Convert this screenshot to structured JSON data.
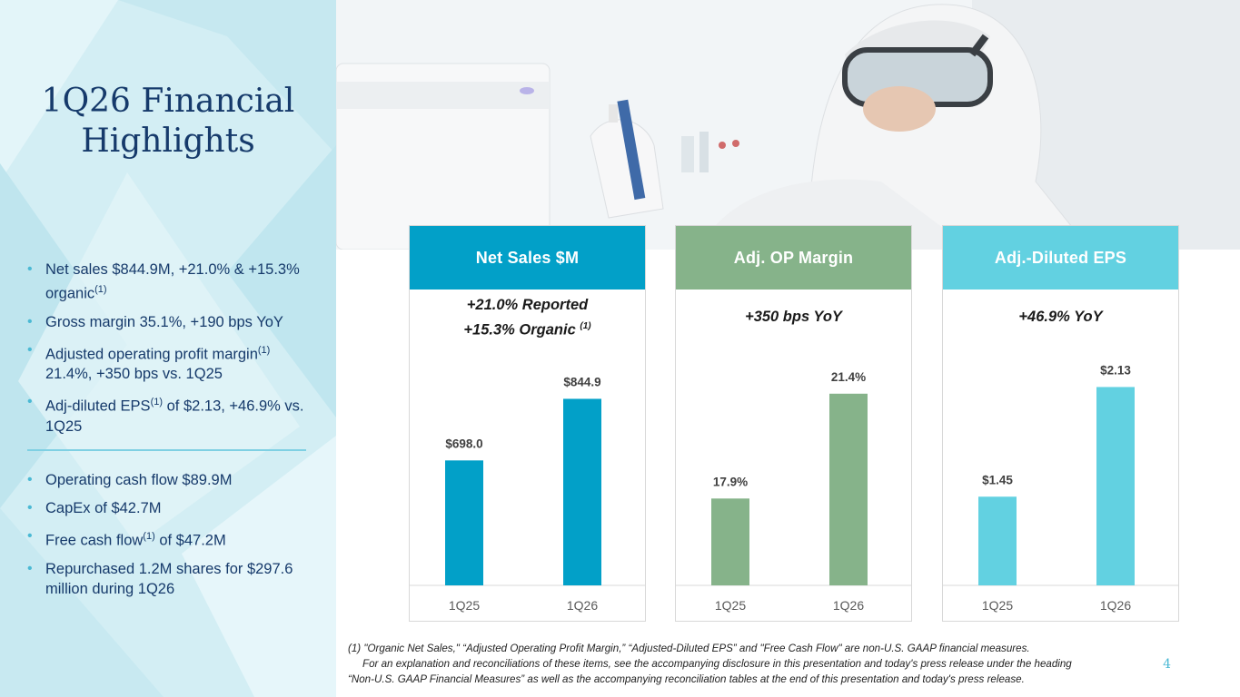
{
  "colors": {
    "navy": "#163a6b",
    "net_sales": "#02a0c8",
    "op_margin": "#86b38a",
    "eps": "#62d1e1",
    "left_panel_bg": "#d3eef4",
    "accent": "#4bb9d4"
  },
  "title": {
    "line1": "1Q26 Financial",
    "line2": "Highlights"
  },
  "bullets_group1": [
    {
      "text": "Net sales $844.9M, +21.0% & +15.3% organic",
      "sup": "(1)"
    },
    {
      "text": "Gross margin 35.1%, +190 bps YoY",
      "sup": ""
    },
    {
      "text": "Adjusted operating profit margin",
      "sup": "(1)",
      "text_after": " 21.4%, +350 bps vs. 1Q25"
    },
    {
      "text": "Adj-diluted EPS",
      "sup": "(1)",
      "text_after": " of $2.13, +46.9% vs. 1Q25"
    }
  ],
  "bullets_group2": [
    {
      "text": "Operating cash flow $89.9M",
      "sup": ""
    },
    {
      "text": "CapEx of $42.7M",
      "sup": ""
    },
    {
      "text": "Free cash flow",
      "sup": "(1)",
      "text_after": " of $47.2M"
    },
    {
      "text": "Repurchased 1.2M shares for $297.6 million during 1Q26",
      "sup": ""
    }
  ],
  "chart_data": [
    {
      "type": "bar",
      "title": "Net Sales $M",
      "subtitle_line1": "+21.0% Reported",
      "subtitle_line2": "+15.3% Organic",
      "subtitle_sup": "(1)",
      "categories": [
        "1Q25",
        "1Q26"
      ],
      "values": [
        698.0,
        844.9
      ],
      "data_labels": [
        "$698.0",
        "$844.9"
      ],
      "ylim": [
        400,
        900
      ],
      "color": "#02a0c8"
    },
    {
      "type": "bar",
      "title": "Adj. OP Margin",
      "subtitle_line1": "+350 bps YoY",
      "categories": [
        "1Q25",
        "1Q26"
      ],
      "values": [
        17.9,
        21.4
      ],
      "data_labels": [
        "17.9%",
        "21.4%"
      ],
      "ylim": [
        15,
        22
      ],
      "color": "#86b38a"
    },
    {
      "type": "bar",
      "title": "Adj.-Diluted EPS",
      "subtitle_line1": "+46.9% YoY",
      "categories": [
        "1Q25",
        "1Q26"
      ],
      "values": [
        1.45,
        2.13
      ],
      "data_labels": [
        "$1.45",
        "$2.13"
      ],
      "ylim": [
        0.9,
        2.2
      ],
      "color": "#62d1e1"
    }
  ],
  "footnote": {
    "line1": "(1) \"Organic Net Sales,\" “Adjusted Operating Profit Margin,” “Adjusted-Diluted EPS” and \"Free Cash Flow\" are non-U.S. GAAP financial measures.",
    "line2": "For an explanation and reconciliations of these items, see the accompanying disclosure in this presentation and today's press release under the heading",
    "line3": "“Non-U.S. GAAP Financial Measures” as well as the accompanying reconciliation tables at the end of this presentation and today's press release."
  },
  "page_number": "4"
}
